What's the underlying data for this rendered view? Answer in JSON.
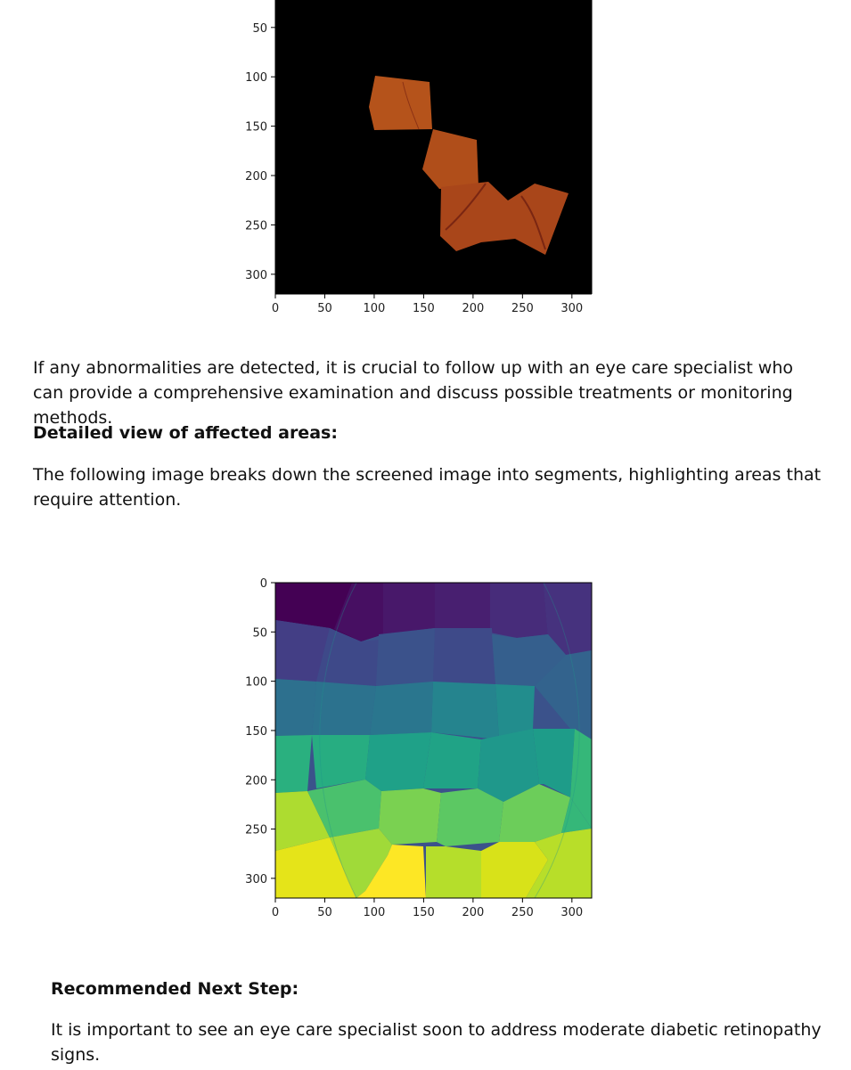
{
  "figure1": {
    "chart_data": {
      "type": "image",
      "xlim": [
        0,
        320
      ],
      "ylim_visible": [
        320,
        30
      ],
      "x_ticks": [
        0,
        50,
        100,
        150,
        200,
        250,
        300
      ],
      "y_ticks": [
        50,
        100,
        150,
        200,
        250,
        300
      ],
      "background": "#000000",
      "content_color": "#b5521a"
    }
  },
  "text1": "If any abnormalities are detected, it is crucial to follow up with an eye care specialist who can provide a comprehensive examination and discuss possible treatments or monitoring methods.",
  "heading_detail": "Detailed view of affected areas:",
  "text2": "The following image breaks down the screened image into segments, highlighting areas that require attention.",
  "figure2": {
    "chart_data": {
      "type": "heatmap",
      "xlim": [
        0,
        320
      ],
      "ylim": [
        320,
        0
      ],
      "x_ticks": [
        0,
        50,
        100,
        150,
        200,
        250,
        300
      ],
      "y_ticks": [
        0,
        50,
        100,
        150,
        200,
        250,
        300
      ],
      "colormap": "viridis"
    }
  },
  "heading_next": "Recommended Next Step:",
  "text3": "It is important to see an eye care specialist soon to address moderate diabetic retinopathy signs."
}
